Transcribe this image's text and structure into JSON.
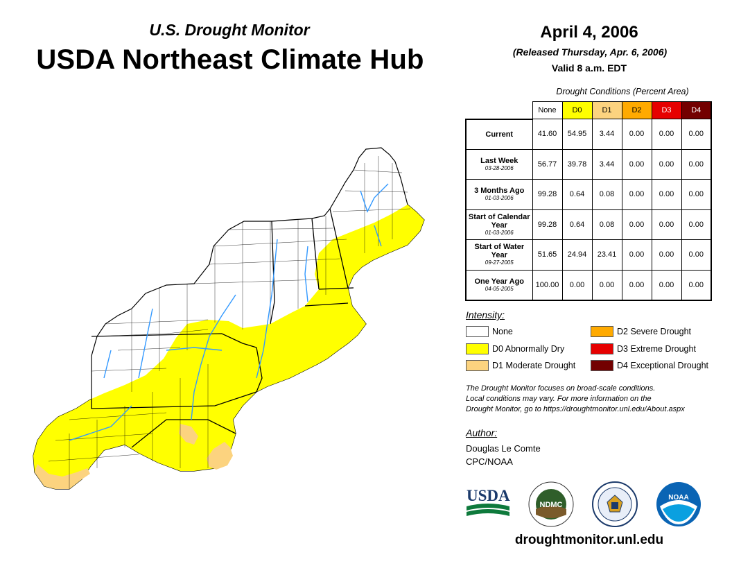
{
  "header": {
    "subtitle": "U.S. Drought Monitor",
    "title": "USDA Northeast Climate Hub"
  },
  "date_block": {
    "date": "April 4, 2006",
    "released": "(Released Thursday, Apr. 6, 2006)",
    "valid": "Valid 8 a.m. EDT"
  },
  "conditions_table": {
    "caption": "Drought Conditions (Percent Area)",
    "columns": [
      "None",
      "D0",
      "D1",
      "D2",
      "D3",
      "D4"
    ],
    "column_colors": [
      "#ffffff",
      "#ffff00",
      "#fcd37f",
      "#ffaa00",
      "#e60000",
      "#730000"
    ],
    "rows": [
      {
        "label": "Current",
        "date": "",
        "values": [
          "41.60",
          "54.95",
          "3.44",
          "0.00",
          "0.00",
          "0.00"
        ]
      },
      {
        "label": "Last Week",
        "date": "03-28-2006",
        "values": [
          "56.77",
          "39.78",
          "3.44",
          "0.00",
          "0.00",
          "0.00"
        ]
      },
      {
        "label": "3 Months Ago",
        "date": "01-03-2006",
        "values": [
          "99.28",
          "0.64",
          "0.08",
          "0.00",
          "0.00",
          "0.00"
        ]
      },
      {
        "label": "Start of Calendar Year",
        "date": "01-03-2006",
        "values": [
          "99.28",
          "0.64",
          "0.08",
          "0.00",
          "0.00",
          "0.00"
        ]
      },
      {
        "label": "Start of Water Year",
        "date": "09-27-2005",
        "values": [
          "51.65",
          "24.94",
          "23.41",
          "0.00",
          "0.00",
          "0.00"
        ]
      },
      {
        "label": "One Year Ago",
        "date": "04-05-2005",
        "values": [
          "100.00",
          "0.00",
          "0.00",
          "0.00",
          "0.00",
          "0.00"
        ]
      }
    ]
  },
  "legend": {
    "title": "Intensity:",
    "items": [
      {
        "label": "None",
        "color": "#ffffff"
      },
      {
        "label": "D0 Abnormally Dry",
        "color": "#ffff00"
      },
      {
        "label": "D1 Moderate Drought",
        "color": "#fcd37f"
      },
      {
        "label": "D2 Severe Drought",
        "color": "#ffaa00"
      },
      {
        "label": "D3 Extreme Drought",
        "color": "#e60000"
      },
      {
        "label": "D4 Exceptional Drought",
        "color": "#730000"
      }
    ]
  },
  "note": {
    "line1": "The Drought Monitor focuses on broad-scale conditions.",
    "line2": "Local conditions may vary. For more information on the",
    "line3": "Drought Monitor, go to https://droughtmonitor.unl.edu/About.aspx"
  },
  "author": {
    "title": "Author:",
    "name": "Douglas Le Comte",
    "org": "CPC/NOAA"
  },
  "logos": {
    "usda": "USDA",
    "ndmc": "NDMC",
    "noaa": "NOAA"
  },
  "footer": {
    "url": "droughtmonitor.unl.edu"
  },
  "map": {
    "none_color": "#ffffff",
    "d0_color": "#ffff00",
    "d1_color": "#fcd37f",
    "river_color": "#3399ff",
    "boundary_color": "#000000"
  }
}
